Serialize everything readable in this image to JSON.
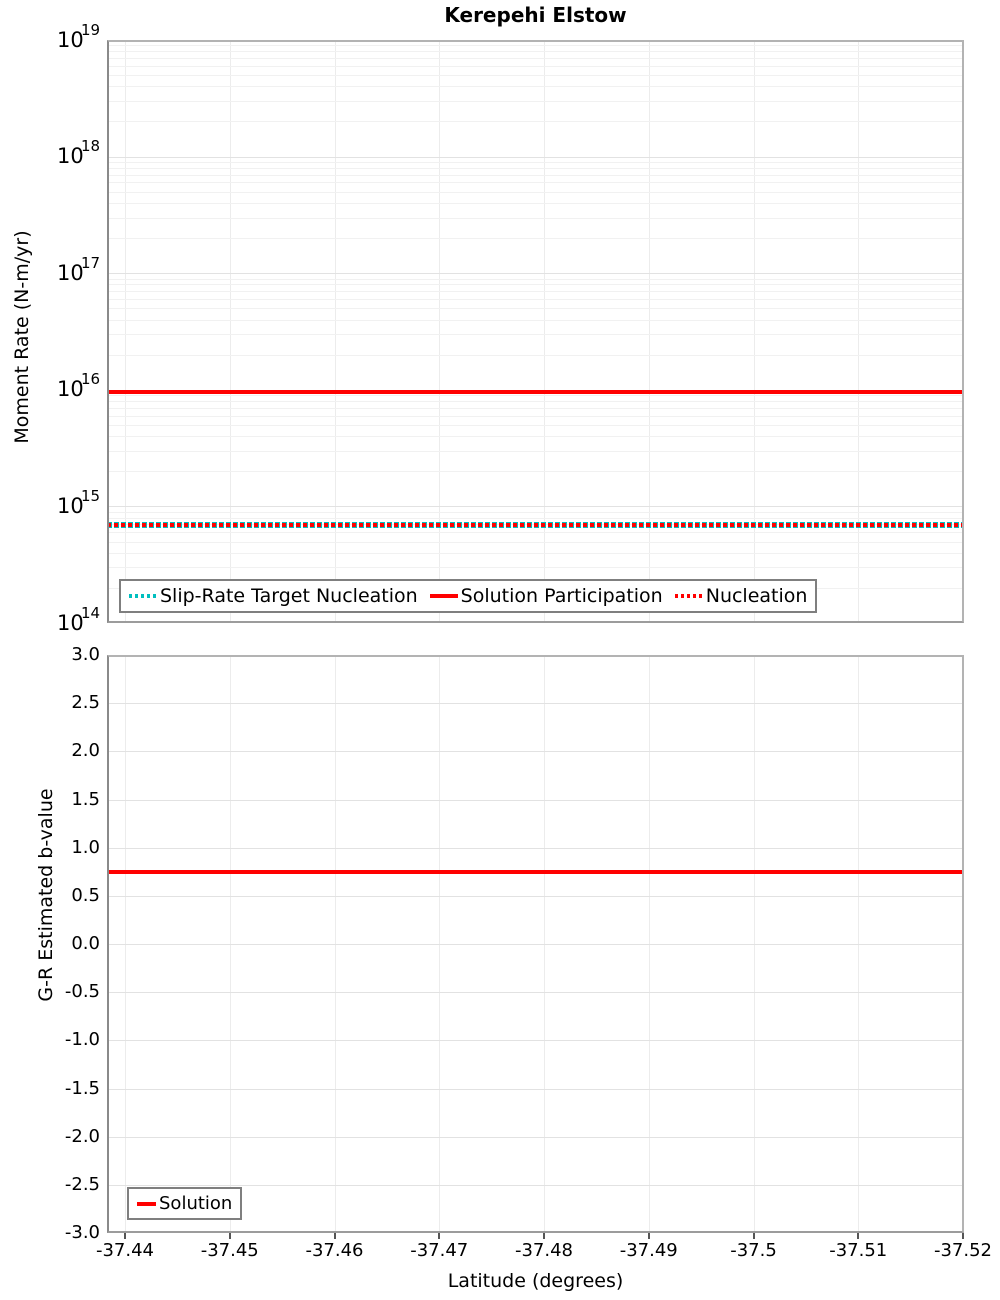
{
  "title": "Kerepehi Elstow",
  "colors": {
    "solution_red": "#ff0000",
    "target_teal": "#00bfbf",
    "grid_major": "#e2e2e2",
    "grid_minor": "#f1f1f1"
  },
  "chart_data": [
    {
      "type": "line",
      "title": "Kerepehi Elstow",
      "ylabel": "Moment Rate (N-m/yr)",
      "yscale": "log",
      "ylim": [
        100000000000000.0,
        1e+19
      ],
      "y_tick_exponents": [
        19,
        18,
        17,
        16,
        15,
        14
      ],
      "y_tick_labels": [
        "10^19",
        "10^18",
        "10^17",
        "10^16",
        "10^15",
        "10^14"
      ],
      "grid": true,
      "legend_position": "bottom-left",
      "series": [
        {
          "name": "Slip-Rate Target Nucleation",
          "style": "dotted",
          "color": "#00bfbf",
          "y_value": 690000000000000.0
        },
        {
          "name": "Solution Participation",
          "style": "solid",
          "color": "#ff0000",
          "y_value": 9600000000000000.0
        },
        {
          "name": "Nucleation",
          "style": "dotted",
          "color": "#ff0000",
          "y_value": 690000000000000.0
        }
      ]
    },
    {
      "type": "line",
      "ylabel": "G-R Estimated b-value",
      "xlabel": "Latitude (degrees)",
      "ylim": [
        -3.0,
        3.0
      ],
      "y_tick_step": 0.5,
      "y_tick_labels": [
        "3.0",
        "2.5",
        "2.0",
        "1.5",
        "1.0",
        "0.5",
        "0.0",
        "-0.5",
        "-1.0",
        "-1.5",
        "-2.0",
        "-2.5",
        "-3.0"
      ],
      "x_tick_labels": [
        "-37.44",
        "-37.45",
        "-37.46",
        "-37.47",
        "-37.48",
        "-37.49",
        "-37.5",
        "-37.51",
        "-37.52"
      ],
      "xlim": [
        -37.44,
        -37.52
      ],
      "grid": true,
      "legend_position": "bottom-left",
      "series": [
        {
          "name": "Solution",
          "style": "solid",
          "color": "#ff0000",
          "y_value": 0.75
        }
      ]
    }
  ]
}
